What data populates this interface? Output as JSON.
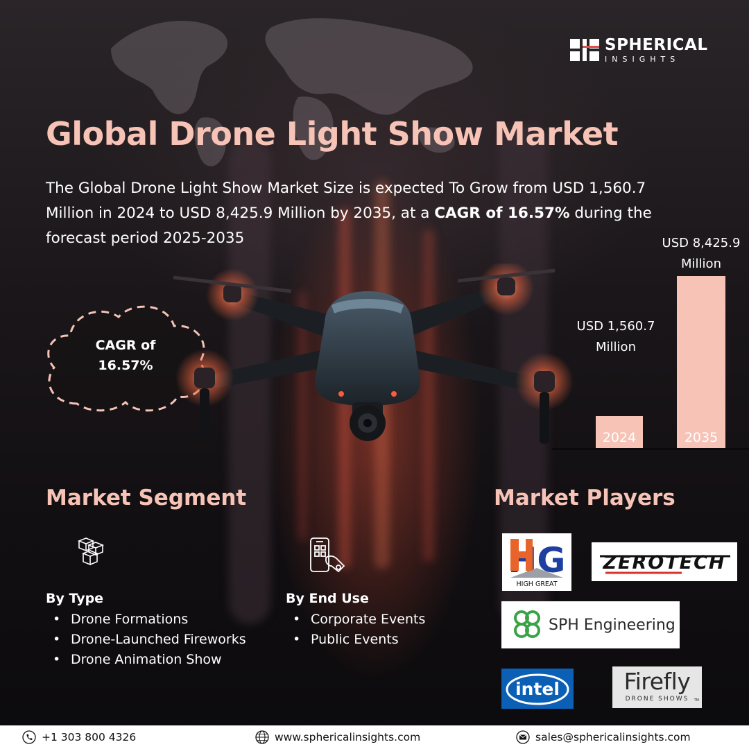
{
  "brand": {
    "name": "SPHERICAL",
    "sub": "INSIGHTS"
  },
  "title": "Global Drone Light Show Market",
  "description": {
    "text": "The Global Drone Light Show Market Size is expected To Grow from USD 1,560.7 Million in 2024 to USD 8,425.9 Million by 2035, at a ",
    "highlight": "CAGR of 16.57%",
    "tail": " during the forecast period 2025-2035"
  },
  "cagr_badge": {
    "line1": "CAGR of",
    "line2": "16.57%"
  },
  "market_size": {
    "bars": [
      {
        "year": "2024",
        "label_line1": "USD 1,560.7",
        "label_line2": "Million",
        "value": 1560.7
      },
      {
        "year": "2035",
        "label_line1": "USD 8,425.9",
        "label_line2": "Million",
        "value": 8425.9
      }
    ],
    "bar_color": "#f6c3b6"
  },
  "segment": {
    "title": "Market Segment",
    "by_type": {
      "heading": "By Type",
      "icon": "boxes-icon",
      "items": [
        "Drone Formations",
        "Drone-Launched Fireworks",
        "Drone Animation Show"
      ]
    },
    "by_end_use": {
      "heading": "By End Use",
      "icon": "phone-hand-icon",
      "items": [
        "Corporate Events",
        "Public Events"
      ]
    }
  },
  "players": {
    "title": "Market Players",
    "logos": [
      {
        "name": "HIGH GREAT",
        "mark": "HG"
      },
      {
        "name": "ZEROTECH",
        "mark": "ZER"
      },
      {
        "name": "SPH Engineering"
      },
      {
        "name": "intel"
      },
      {
        "name": "Firefly",
        "sub": "DRONE SHOWS",
        "tm": "TM"
      }
    ]
  },
  "footer": {
    "phone": "+1 303 800 4326",
    "website": "www.sphericalinsights.com",
    "email": "sales@sphericalinsights.com"
  },
  "colors": {
    "accent": "#f6c3b6",
    "background": "#161316"
  }
}
